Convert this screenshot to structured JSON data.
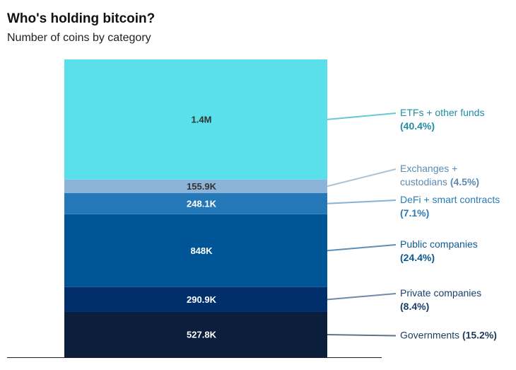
{
  "header": {
    "title": "Who's holding bitcoin?",
    "subtitle": "Number of coins by category"
  },
  "chart_data": {
    "type": "bar",
    "stacked": true,
    "title": "Who's holding bitcoin?",
    "subtitle": "Number of coins by category",
    "unit": "coins",
    "series": [
      {
        "name": "Governments",
        "value": 527800,
        "label": "527.8K",
        "share": "(15.2%)",
        "legend_lines": [
          "Governments"
        ],
        "color": "#0b1e3c",
        "label_color": "#ffffff",
        "legend_color": "#1b3a5c",
        "line_color": "#5f7488"
      },
      {
        "name": "Private companies",
        "value": 290900,
        "label": "290.9K",
        "share": "(8.4%)",
        "legend_lines": [
          "Private companies"
        ],
        "color": "#002f6c",
        "label_color": "#ffffff",
        "legend_color": "#1a3f6a",
        "line_color": "#6f8aa8"
      },
      {
        "name": "Public companies",
        "value": 848000,
        "label": "848K",
        "share": "(24.4%)",
        "legend_lines": [
          "Public companies"
        ],
        "color": "#005596",
        "label_color": "#ffffff",
        "legend_color": "#0f5a8f",
        "line_color": "#5f8fb5"
      },
      {
        "name": "DeFi + smart contracts",
        "value": 248100,
        "label": "248.1K",
        "share": "(7.1%)",
        "legend_lines": [
          "DeFi + smart contracts"
        ],
        "color": "#2478b8",
        "label_color": "#ffffff",
        "legend_color": "#2a7bb5",
        "line_color": "#87b3d6"
      },
      {
        "name": "Exchanges + custodians",
        "value": 155900,
        "label": "155.9K",
        "share": "(4.5%)",
        "legend_lines": [
          "Exchanges +",
          "custodians"
        ],
        "color": "#8cb4d8",
        "label_color": "#333333",
        "legend_color": "#5a8bb4",
        "line_color": "#a7c4dd"
      },
      {
        "name": "ETFs + other funds",
        "value": 1400000,
        "label": "1.4M",
        "share": "(40.4%)",
        "legend_lines": [
          "ETFs + other funds"
        ],
        "color": "#59e0ea",
        "label_color": "#333333",
        "legend_color": "#1f8ea3",
        "line_color": "#6cc7d4"
      }
    ]
  }
}
